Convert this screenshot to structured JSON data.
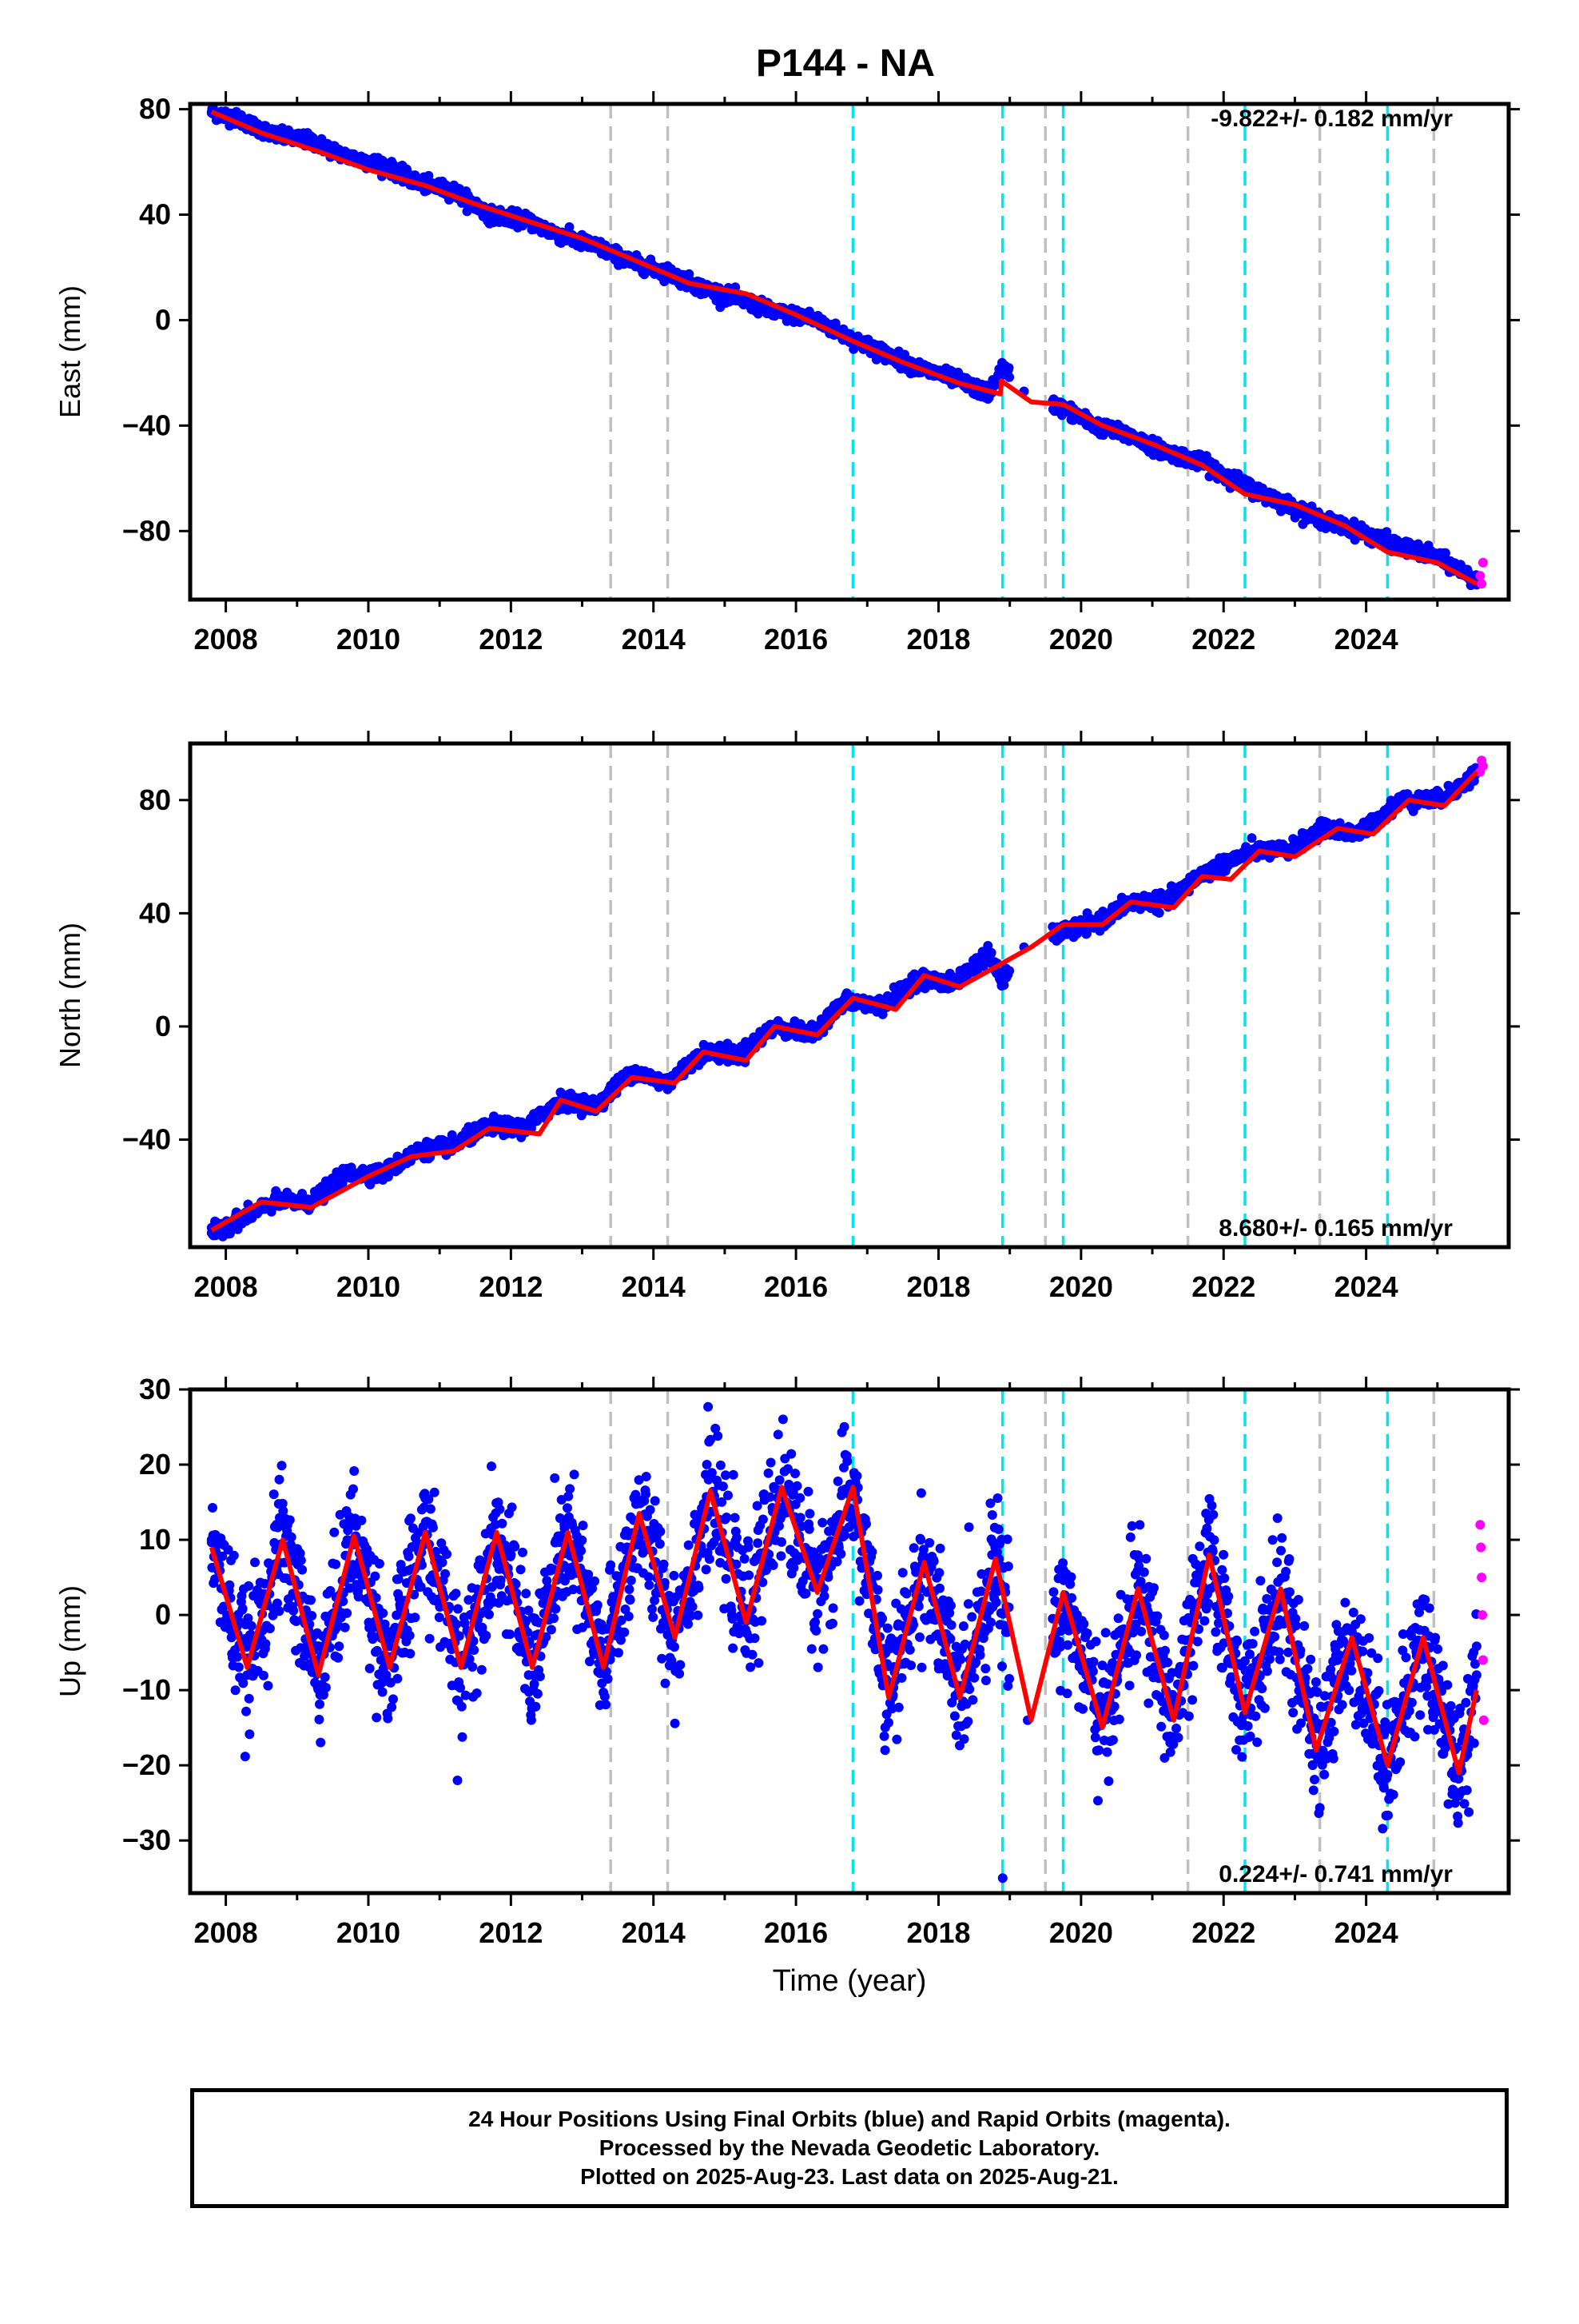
{
  "title": "P144 - NA",
  "footer": {
    "line1": "24 Hour Positions Using Final Orbits (blue) and Rapid Orbits (magenta).",
    "line2": "Processed by the Nevada Geodetic Laboratory.",
    "line3": "Plotted on 2025-Aug-23. Last data on 2025-Aug-21."
  },
  "colors": {
    "final_orbits": "#0000ff",
    "rapid_orbits": "#ff00ff",
    "model": "#ff0000",
    "equipment_change": "#c0c0c0",
    "earthquake": "#00e5ee"
  },
  "chart_data": [
    {
      "type": "scatter",
      "panel": "east",
      "title": "P144 - NA",
      "ylabel": "East (mm)",
      "xlabel": "",
      "xlim": [
        2007.5,
        2026.0
      ],
      "ylim": [
        -106,
        82
      ],
      "yticks": [
        80,
        40,
        0,
        -40,
        -80
      ],
      "xticks": [
        2008,
        2010,
        2012,
        2014,
        2016,
        2018,
        2020,
        2022,
        2024
      ],
      "rate_text": "-9.822+/- 0.182 mm/yr",
      "rate_position": "top-right",
      "grid": false,
      "series": [
        {
          "name": "Final Orbits",
          "color": "#0000ff",
          "x": [
            2007.8,
            2008.2,
            2008.7,
            2009.2,
            2009.7,
            2010.2,
            2010.7,
            2011.2,
            2011.7,
            2012.2,
            2012.7,
            2013.2,
            2013.7,
            2014.2,
            2014.7,
            2015.2,
            2015.7,
            2016.2,
            2016.7,
            2017.2,
            2017.7,
            2018.2,
            2018.7,
            2018.9,
            2019.2,
            2019.8,
            2020.2,
            2020.7,
            2021.2,
            2021.7,
            2022.4,
            2022.9,
            2023.4,
            2023.9,
            2024.5,
            2025.0,
            2025.4,
            2025.55
          ],
          "y": [
            79,
            76,
            70,
            68,
            62,
            59,
            52,
            49,
            40,
            38,
            32,
            28,
            22,
            18,
            12,
            8,
            3,
            1,
            -6,
            -12,
            -18,
            -22,
            -28,
            -18,
            -27,
            -34,
            -40,
            -44,
            -50,
            -54,
            -64,
            -70,
            -76,
            -80,
            -86,
            -90,
            -96,
            -99
          ]
        },
        {
          "name": "Rapid Orbits",
          "color": "#ff00ff",
          "x": [
            2025.6,
            2025.62,
            2025.64
          ],
          "y": [
            -97,
            -100,
            -92
          ]
        }
      ],
      "model": {
        "color": "#ff0000",
        "x": [
          2007.8,
          2008.5,
          2009.3,
          2010.0,
          2010.8,
          2011.5,
          2012.3,
          2013.0,
          2013.8,
          2014.5,
          2015.3,
          2016.0,
          2016.8,
          2017.5,
          2018.3,
          2018.87,
          2018.88,
          2019.3,
          2019.75,
          2020.3,
          2021.0,
          2021.7,
          2022.3,
          2023.0,
          2023.7,
          2024.3,
          2025.0,
          2025.55
        ],
        "y": [
          79,
          71,
          64,
          57,
          51,
          44,
          37,
          31,
          22,
          14,
          10,
          2,
          -8,
          -16,
          -24,
          -28,
          -23,
          -31,
          -32,
          -40,
          -47,
          -55,
          -66,
          -70,
          -78,
          -88,
          -92,
          -100
        ]
      }
    },
    {
      "type": "scatter",
      "panel": "north",
      "ylabel": "North (mm)",
      "xlabel": "",
      "xlim": [
        2007.5,
        2026.0
      ],
      "ylim": [
        -78,
        100
      ],
      "yticks": [
        80,
        40,
        0,
        -40
      ],
      "xticks": [
        2008,
        2010,
        2012,
        2014,
        2016,
        2018,
        2020,
        2022,
        2024
      ],
      "rate_text": "8.680+/- 0.165 mm/yr",
      "rate_position": "bottom-right",
      "grid": false,
      "series": [
        {
          "name": "Final Orbits",
          "color": "#0000ff",
          "x": [
            2007.8,
            2008.2,
            2008.7,
            2009.2,
            2009.7,
            2010.2,
            2010.7,
            2011.2,
            2011.7,
            2012.2,
            2012.7,
            2013.2,
            2013.7,
            2014.2,
            2014.7,
            2015.2,
            2015.7,
            2016.2,
            2016.7,
            2017.2,
            2017.7,
            2018.2,
            2018.7,
            2018.9,
            2019.2,
            2019.8,
            2020.2,
            2020.7,
            2021.2,
            2021.7,
            2022.4,
            2022.9,
            2023.4,
            2023.9,
            2024.5,
            2025.0,
            2025.4,
            2025.55
          ],
          "y": [
            -73,
            -68,
            -62,
            -62,
            -52,
            -52,
            -44,
            -42,
            -35,
            -36,
            -26,
            -28,
            -16,
            -20,
            -9,
            -10,
            0,
            -3,
            9,
            7,
            17,
            15,
            26,
            16,
            28,
            34,
            36,
            44,
            44,
            54,
            62,
            62,
            70,
            68,
            80,
            80,
            86,
            90
          ]
        },
        {
          "name": "Rapid Orbits",
          "color": "#ff00ff",
          "x": [
            2025.6,
            2025.62,
            2025.64
          ],
          "y": [
            90,
            94,
            92
          ]
        }
      ],
      "model": {
        "color": "#ff0000",
        "x": [
          2007.8,
          2008.5,
          2009.2,
          2010.0,
          2010.6,
          2011.2,
          2011.7,
          2012.4,
          2012.7,
          2013.2,
          2013.7,
          2014.3,
          2014.7,
          2015.3,
          2015.7,
          2016.3,
          2016.8,
          2017.4,
          2017.8,
          2018.3,
          2018.87,
          2019.3,
          2019.75,
          2020.3,
          2020.7,
          2021.3,
          2021.7,
          2022.1,
          2022.5,
          2023.0,
          2023.6,
          2024.1,
          2024.6,
          2025.1,
          2025.55
        ],
        "y": [
          -72,
          -62,
          -64,
          -53,
          -46,
          -44,
          -36,
          -38,
          -26,
          -30,
          -18,
          -20,
          -9,
          -12,
          0,
          -3,
          10,
          6,
          18,
          14,
          22,
          28,
          36,
          36,
          44,
          42,
          53,
          52,
          62,
          60,
          70,
          68,
          80,
          78,
          90
        ]
      }
    },
    {
      "type": "scatter",
      "panel": "up",
      "ylabel": "Up (mm)",
      "xlabel": "Time (year)",
      "xlim": [
        2007.5,
        2026.0
      ],
      "ylim": [
        -37,
        30
      ],
      "yticks": [
        30,
        20,
        10,
        0,
        -10,
        -20,
        -30
      ],
      "xticks": [
        2008,
        2010,
        2012,
        2014,
        2016,
        2018,
        2020,
        2022,
        2024
      ],
      "rate_text": "0.224+/- 0.741 mm/yr",
      "rate_position": "bottom-right",
      "grid": false,
      "series": [
        {
          "name": "Final Orbits",
          "color": "#0000ff",
          "x": [
            2007.8,
            2008.3,
            2008.75,
            2009.25,
            2009.75,
            2010.25,
            2010.75,
            2011.25,
            2011.75,
            2012.25,
            2012.75,
            2013.25,
            2013.75,
            2014.25,
            2014.75,
            2015.25,
            2015.75,
            2016.25,
            2016.75,
            2017.25,
            2017.75,
            2018.25,
            2018.75,
            2018.9,
            2019.25,
            2019.75,
            2020.25,
            2020.75,
            2021.25,
            2021.75,
            2022.25,
            2022.75,
            2023.25,
            2023.75,
            2024.25,
            2024.75,
            2025.25,
            2025.55
          ],
          "y": [
            10,
            -8,
            18,
            -9,
            16,
            -8,
            14,
            -22,
            13,
            -8,
            12,
            -12,
            16,
            -4,
            20,
            -2,
            24,
            4,
            17,
            -18,
            10,
            -16,
            8,
            -35,
            -14,
            6,
            -18,
            8,
            -17,
            11,
            -14,
            7,
            -20,
            -5,
            -23,
            -2,
            -25,
            -8
          ]
        },
        {
          "name": "Rapid Orbits",
          "color": "#ff00ff",
          "x": [
            2025.6,
            2025.61,
            2025.62,
            2025.63,
            2025.64,
            2025.65
          ],
          "y": [
            12,
            9,
            5,
            0,
            -6,
            -14
          ]
        }
      ],
      "model": {
        "color": "#ff0000",
        "x": [
          2007.8,
          2008.3,
          2008.8,
          2009.3,
          2009.8,
          2010.3,
          2010.8,
          2011.3,
          2011.8,
          2012.3,
          2012.8,
          2013.3,
          2013.8,
          2014.3,
          2014.8,
          2015.3,
          2015.8,
          2016.3,
          2016.8,
          2017.3,
          2017.8,
          2018.3,
          2018.8,
          2019.3,
          2019.75,
          2020.3,
          2020.8,
          2021.3,
          2021.8,
          2022.3,
          2022.8,
          2023.3,
          2023.8,
          2024.3,
          2024.8,
          2025.3,
          2025.55
        ],
        "y": [
          9,
          -7,
          10,
          -8,
          10.5,
          -7,
          11,
          -7,
          11,
          -7,
          11,
          -7,
          13.5,
          -3,
          16.5,
          -1,
          17,
          3,
          17,
          -11,
          7,
          -11,
          7.5,
          -14,
          3,
          -15,
          3.5,
          -14,
          8,
          -13,
          3.5,
          -18,
          -3,
          -20,
          -3,
          -21,
          -10
        ]
      }
    }
  ],
  "events": {
    "equipment_changes": [
      2013.4,
      2014.2,
      2019.5,
      2021.5,
      2023.35,
      2024.95
    ],
    "earthquakes": [
      2016.8,
      2018.9,
      2019.75,
      2022.3,
      2024.3
    ]
  }
}
